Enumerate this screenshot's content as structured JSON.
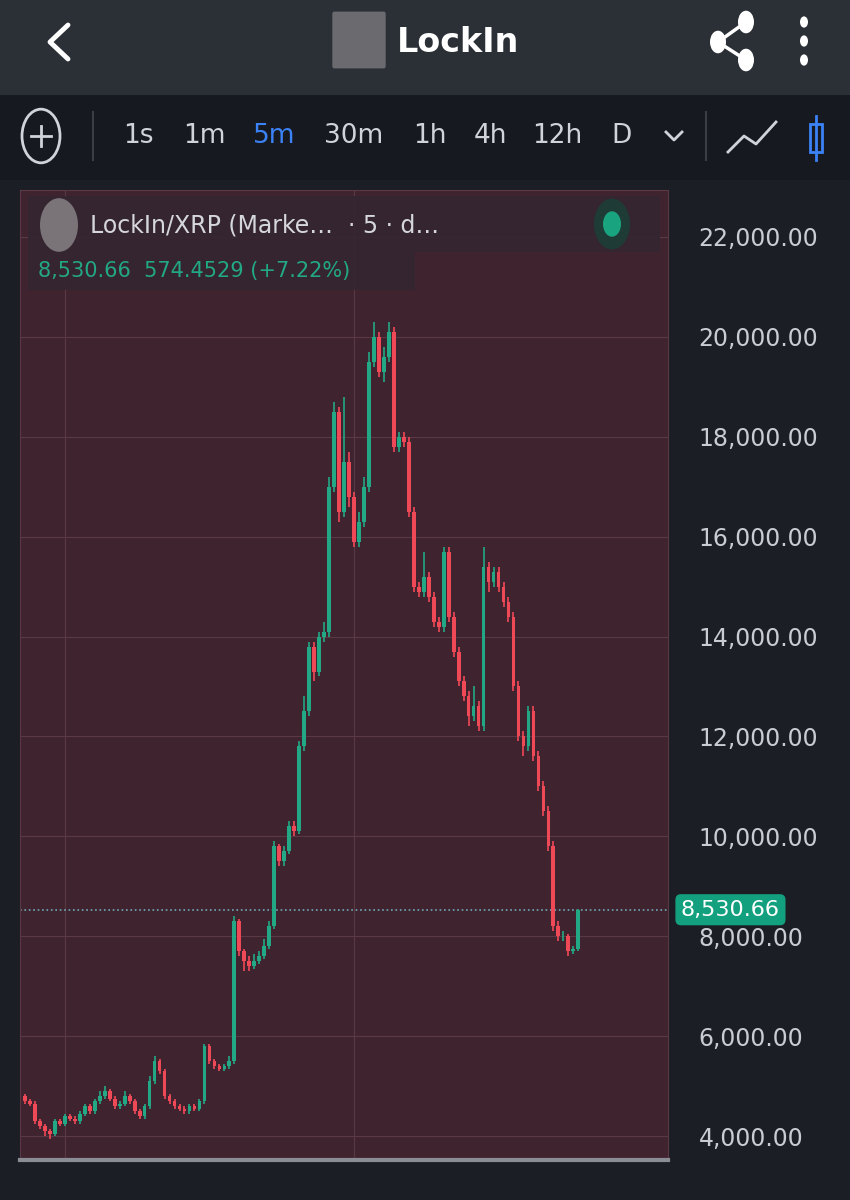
{
  "header": {
    "title": "LockIn",
    "timeframes": [
      "1s",
      "1m",
      "5m",
      "30m",
      "1h",
      "4h",
      "12h",
      "D"
    ],
    "active_timeframe": "5m"
  },
  "chart_data": {
    "type": "candlestick",
    "title": "LockIn/XRP (Marke…  · 5 · d…",
    "subtitle": "8,530.66  574.4529 (+7.22%)",
    "x": [
      0,
      1,
      2,
      3,
      4,
      5,
      6,
      7,
      8,
      9,
      10,
      11,
      12,
      13,
      14,
      15,
      16,
      17,
      18,
      19,
      20,
      21,
      22,
      23,
      24,
      25,
      26,
      27,
      28,
      29,
      30,
      31,
      32,
      33,
      34,
      35,
      36,
      37,
      38,
      39,
      40,
      41,
      42,
      43,
      44,
      45,
      46,
      47,
      48,
      49,
      50,
      51,
      52,
      53,
      54,
      55,
      56,
      57,
      58,
      59,
      60,
      61,
      62,
      63,
      64,
      65,
      66,
      67,
      68,
      69,
      70,
      71,
      72,
      73,
      74,
      75,
      76,
      77,
      78,
      79,
      80,
      81,
      82,
      83,
      84,
      85,
      86,
      87,
      88,
      89,
      90,
      91,
      92,
      93,
      94,
      95,
      96,
      97,
      98,
      99,
      100,
      101,
      102,
      103,
      104,
      105,
      106,
      107,
      108,
      109,
      110,
      111
    ],
    "open": [
      4800,
      4700,
      4650,
      4300,
      4200,
      4100,
      4050,
      4300,
      4250,
      4400,
      4350,
      4300,
      4450,
      4600,
      4500,
      4700,
      4800,
      4900,
      4750,
      4600,
      4650,
      4800,
      4700,
      4500,
      4400,
      4600,
      5100,
      5500,
      5300,
      4800,
      4700,
      4600,
      4550,
      4500,
      4600,
      4550,
      4700,
      5800,
      5500,
      5400,
      5350,
      5400,
      5500,
      8300,
      7700,
      7500,
      7400,
      7500,
      7600,
      7800,
      8200,
      9800,
      9500,
      9700,
      10200,
      10100,
      11800,
      12500,
      13800,
      13300,
      14000,
      14100,
      17000,
      18500,
      16500,
      17500,
      16800,
      15900,
      16300,
      17000,
      19500,
      20000,
      19300,
      19600,
      20100,
      17800,
      18000,
      17900,
      16500,
      15000,
      14900,
      15200,
      14800,
      14300,
      14200,
      15700,
      14400,
      13700,
      13100,
      12800,
      12400,
      12600,
      12200,
      15400,
      15100,
      15300,
      15000,
      14700,
      14400,
      13000,
      12000,
      11800,
      12500,
      11600,
      11000,
      10500,
      9800,
      8200,
      8000,
      8000,
      7700,
      7750
    ],
    "high": [
      4850,
      4750,
      4700,
      4350,
      4250,
      4150,
      4350,
      4350,
      4450,
      4450,
      4400,
      4500,
      4650,
      4650,
      4750,
      4900,
      5000,
      4950,
      4800,
      4700,
      4900,
      4850,
      4750,
      4550,
      4650,
      5200,
      5600,
      5550,
      5350,
      4850,
      4750,
      4650,
      4600,
      4650,
      4650,
      4750,
      5850,
      5850,
      5550,
      5450,
      5450,
      5600,
      8400,
      8350,
      7750,
      7600,
      7650,
      7700,
      7950,
      8300,
      9900,
      9850,
      9800,
      10300,
      10300,
      11900,
      12800,
      13900,
      13900,
      14100,
      14300,
      17200,
      18700,
      18600,
      18800,
      17700,
      16900,
      16500,
      17200,
      19700,
      20300,
      20100,
      19800,
      20300,
      20200,
      18100,
      18100,
      18000,
      16600,
      15100,
      15700,
      15300,
      14900,
      14400,
      15800,
      15800,
      14500,
      13800,
      13200,
      12900,
      13000,
      12700,
      15800,
      15500,
      15400,
      15400,
      15100,
      14800,
      14500,
      13100,
      12100,
      12600,
      12600,
      11700,
      11100,
      10600,
      9900,
      8300,
      8100,
      8050,
      7800,
      8550
    ],
    "low": [
      4650,
      4600,
      4250,
      4150,
      4000,
      3950,
      4000,
      4200,
      4200,
      4300,
      4250,
      4250,
      4400,
      4450,
      4450,
      4650,
      4750,
      4700,
      4550,
      4550,
      4600,
      4650,
      4450,
      4350,
      4350,
      4550,
      5050,
      5250,
      4750,
      4650,
      4550,
      4500,
      4450,
      4450,
      4500,
      4500,
      4650,
      5450,
      5350,
      5300,
      5300,
      5350,
      5450,
      7600,
      7300,
      7300,
      7350,
      7450,
      7550,
      7750,
      8150,
      9400,
      9400,
      9650,
      10000,
      10050,
      11700,
      12400,
      13100,
      13200,
      13900,
      14000,
      16900,
      16300,
      16400,
      16600,
      15800,
      15800,
      16200,
      16900,
      19400,
      19200,
      19100,
      19500,
      17700,
      17700,
      17800,
      16400,
      14900,
      14800,
      14800,
      14700,
      14200,
      14100,
      14100,
      14300,
      13600,
      13000,
      12700,
      12200,
      12300,
      12100,
      12100,
      14900,
      15000,
      14900,
      14600,
      14300,
      12900,
      11900,
      11600,
      11700,
      11500,
      10900,
      10400,
      9700,
      8100,
      7900,
      7900,
      7600,
      7650,
      7700
    ],
    "close": [
      4700,
      4650,
      4300,
      4200,
      4100,
      4050,
      4300,
      4250,
      4400,
      4350,
      4300,
      4450,
      4600,
      4500,
      4700,
      4800,
      4900,
      4750,
      4600,
      4650,
      4800,
      4700,
      4500,
      4400,
      4600,
      5100,
      5500,
      5300,
      4800,
      4700,
      4600,
      4550,
      4500,
      4600,
      4550,
      4700,
      5800,
      5500,
      5400,
      5350,
      5400,
      5500,
      8300,
      7700,
      7500,
      7400,
      7500,
      7600,
      7800,
      8200,
      9800,
      9500,
      9700,
      10200,
      10100,
      11800,
      12500,
      13800,
      13300,
      14000,
      14100,
      17000,
      18500,
      16500,
      17500,
      16800,
      15900,
      16300,
      17000,
      19500,
      20000,
      19300,
      19600,
      20100,
      17800,
      18000,
      17900,
      16500,
      15000,
      14900,
      15200,
      14800,
      14300,
      14200,
      15700,
      14400,
      13700,
      13100,
      12800,
      12400,
      12600,
      12200,
      15400,
      15100,
      15300,
      15000,
      14700,
      14400,
      13000,
      12000,
      11800,
      12500,
      11600,
      11000,
      10500,
      9800,
      8200,
      8000,
      8000,
      7700,
      7750,
      8530.66
    ],
    "last_price": {
      "value": 8530.66,
      "label": "8,530.66"
    },
    "xlim": [
      -1,
      129
    ],
    "xticks": [
      8,
      66
    ],
    "ylim": [
      3520,
      22940
    ],
    "yticks": [
      {
        "value": 4000,
        "label": "4,000.00"
      },
      {
        "value": 6000,
        "label": "6,000.00"
      },
      {
        "value": 8000,
        "label": "8,000.00"
      },
      {
        "value": 10000,
        "label": "10,000.00"
      },
      {
        "value": 12000,
        "label": "12,000.00"
      },
      {
        "value": 14000,
        "label": "14,000.00"
      },
      {
        "value": 16000,
        "label": "16,000.00"
      },
      {
        "value": 18000,
        "label": "18,000.00"
      },
      {
        "value": 20000,
        "label": "20,000.00"
      },
      {
        "value": 22000,
        "label": "22,000.00"
      }
    ],
    "grid": true,
    "tick_labels": "y"
  }
}
